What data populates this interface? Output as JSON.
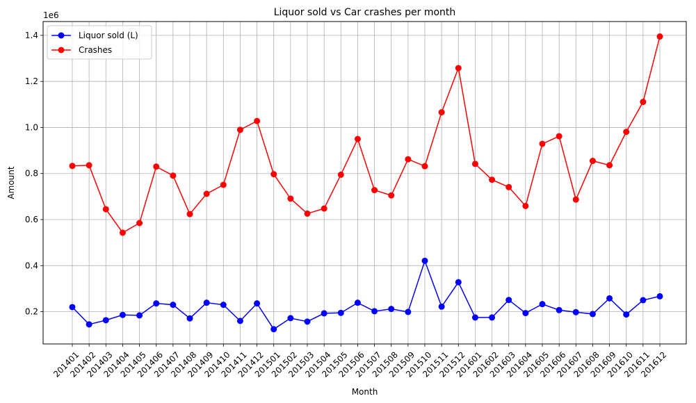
{
  "chart_data": {
    "type": "line",
    "title": "Liquor sold vs Car crashes per month",
    "xlabel": "Month",
    "ylabel": "Amount",
    "y_offset_label": "1e6",
    "ylim": [
      0.06,
      1.46
    ],
    "yticks": [
      0.2,
      0.4,
      0.6,
      0.8,
      1.0,
      1.2,
      1.4
    ],
    "ytick_labels": [
      "0.2",
      "0.4",
      "0.6",
      "0.8",
      "1.0",
      "1.2",
      "1.4"
    ],
    "grid": true,
    "legend_position": "top-left",
    "categories": [
      "201401",
      "201402",
      "201403",
      "201404",
      "201405",
      "201406",
      "201407",
      "201408",
      "201409",
      "201410",
      "201411",
      "201412",
      "201501",
      "201502",
      "201503",
      "201504",
      "201505",
      "201506",
      "201507",
      "201508",
      "201509",
      "201510",
      "201511",
      "201512",
      "201601",
      "201602",
      "201603",
      "201604",
      "201605",
      "201606",
      "201607",
      "201608",
      "201609",
      "201610",
      "201611",
      "201612"
    ],
    "series": [
      {
        "name": "Liquor sold (L)",
        "color": "#0000ff",
        "values": [
          0.22,
          0.145,
          0.163,
          0.186,
          0.184,
          0.236,
          0.23,
          0.171,
          0.239,
          0.23,
          0.16,
          0.236,
          0.124,
          0.172,
          0.157,
          0.193,
          0.195,
          0.239,
          0.202,
          0.212,
          0.199,
          0.421,
          0.222,
          0.328,
          0.175,
          0.175,
          0.251,
          0.194,
          0.233,
          0.207,
          0.198,
          0.19,
          0.258,
          0.188,
          0.25,
          0.267
        ]
      },
      {
        "name": "Crashes",
        "color": "#ff0000",
        "values": [
          0.833,
          0.836,
          0.645,
          0.543,
          0.585,
          0.83,
          0.791,
          0.624,
          0.712,
          0.751,
          0.99,
          1.028,
          0.797,
          0.691,
          0.626,
          0.648,
          0.795,
          0.95,
          0.728,
          0.705,
          0.862,
          0.832,
          1.066,
          1.258,
          0.842,
          0.773,
          0.741,
          0.659,
          0.929,
          0.962,
          0.687,
          0.855,
          0.836,
          0.981,
          1.111,
          1.395
        ]
      }
    ]
  }
}
